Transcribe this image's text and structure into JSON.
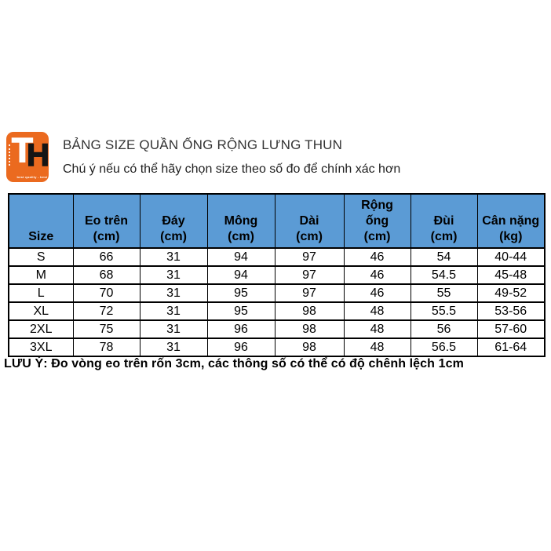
{
  "logo": {
    "letter_t": "T",
    "letter_h": "H",
    "tagline": "best quality - best price",
    "background_color": "#EB6A1F"
  },
  "header": {
    "title": "BẢNG SIZE QUẦN ỐNG RỘNG LƯNG THUN",
    "subtitle": "Chú ý nếu có thể hãy chọn size theo số đo để chính xác hơn"
  },
  "size_table": {
    "header_fill": "#5B9BD5",
    "border_color": "#000000",
    "columns": [
      "Size",
      "Eo trên\n(cm)",
      "Đáy\n(cm)",
      "Mông\n(cm)",
      "Dài\n(cm)",
      "Rộng\nống\n(cm)",
      "Đùi\n(cm)",
      "Cân nặng\n(kg)"
    ],
    "rows": [
      [
        "S",
        "66",
        "31",
        "94",
        "97",
        "46",
        "54",
        "40-44"
      ],
      [
        "M",
        "68",
        "31",
        "94",
        "97",
        "46",
        "54.5",
        "45-48"
      ],
      [
        "L",
        "70",
        "31",
        "95",
        "97",
        "46",
        "55",
        "49-52"
      ],
      [
        "XL",
        "72",
        "31",
        "95",
        "98",
        "48",
        "55.5",
        "53-56"
      ],
      [
        "2XL",
        "75",
        "31",
        "96",
        "98",
        "48",
        "56",
        "57-60"
      ],
      [
        "3XL",
        "78",
        "31",
        "96",
        "98",
        "48",
        "56.5",
        "61-64"
      ]
    ]
  },
  "note": "LƯU Ý: Đo vòng eo trên rốn 3cm, các thông số có thể có độ chênh lệch 1cm"
}
